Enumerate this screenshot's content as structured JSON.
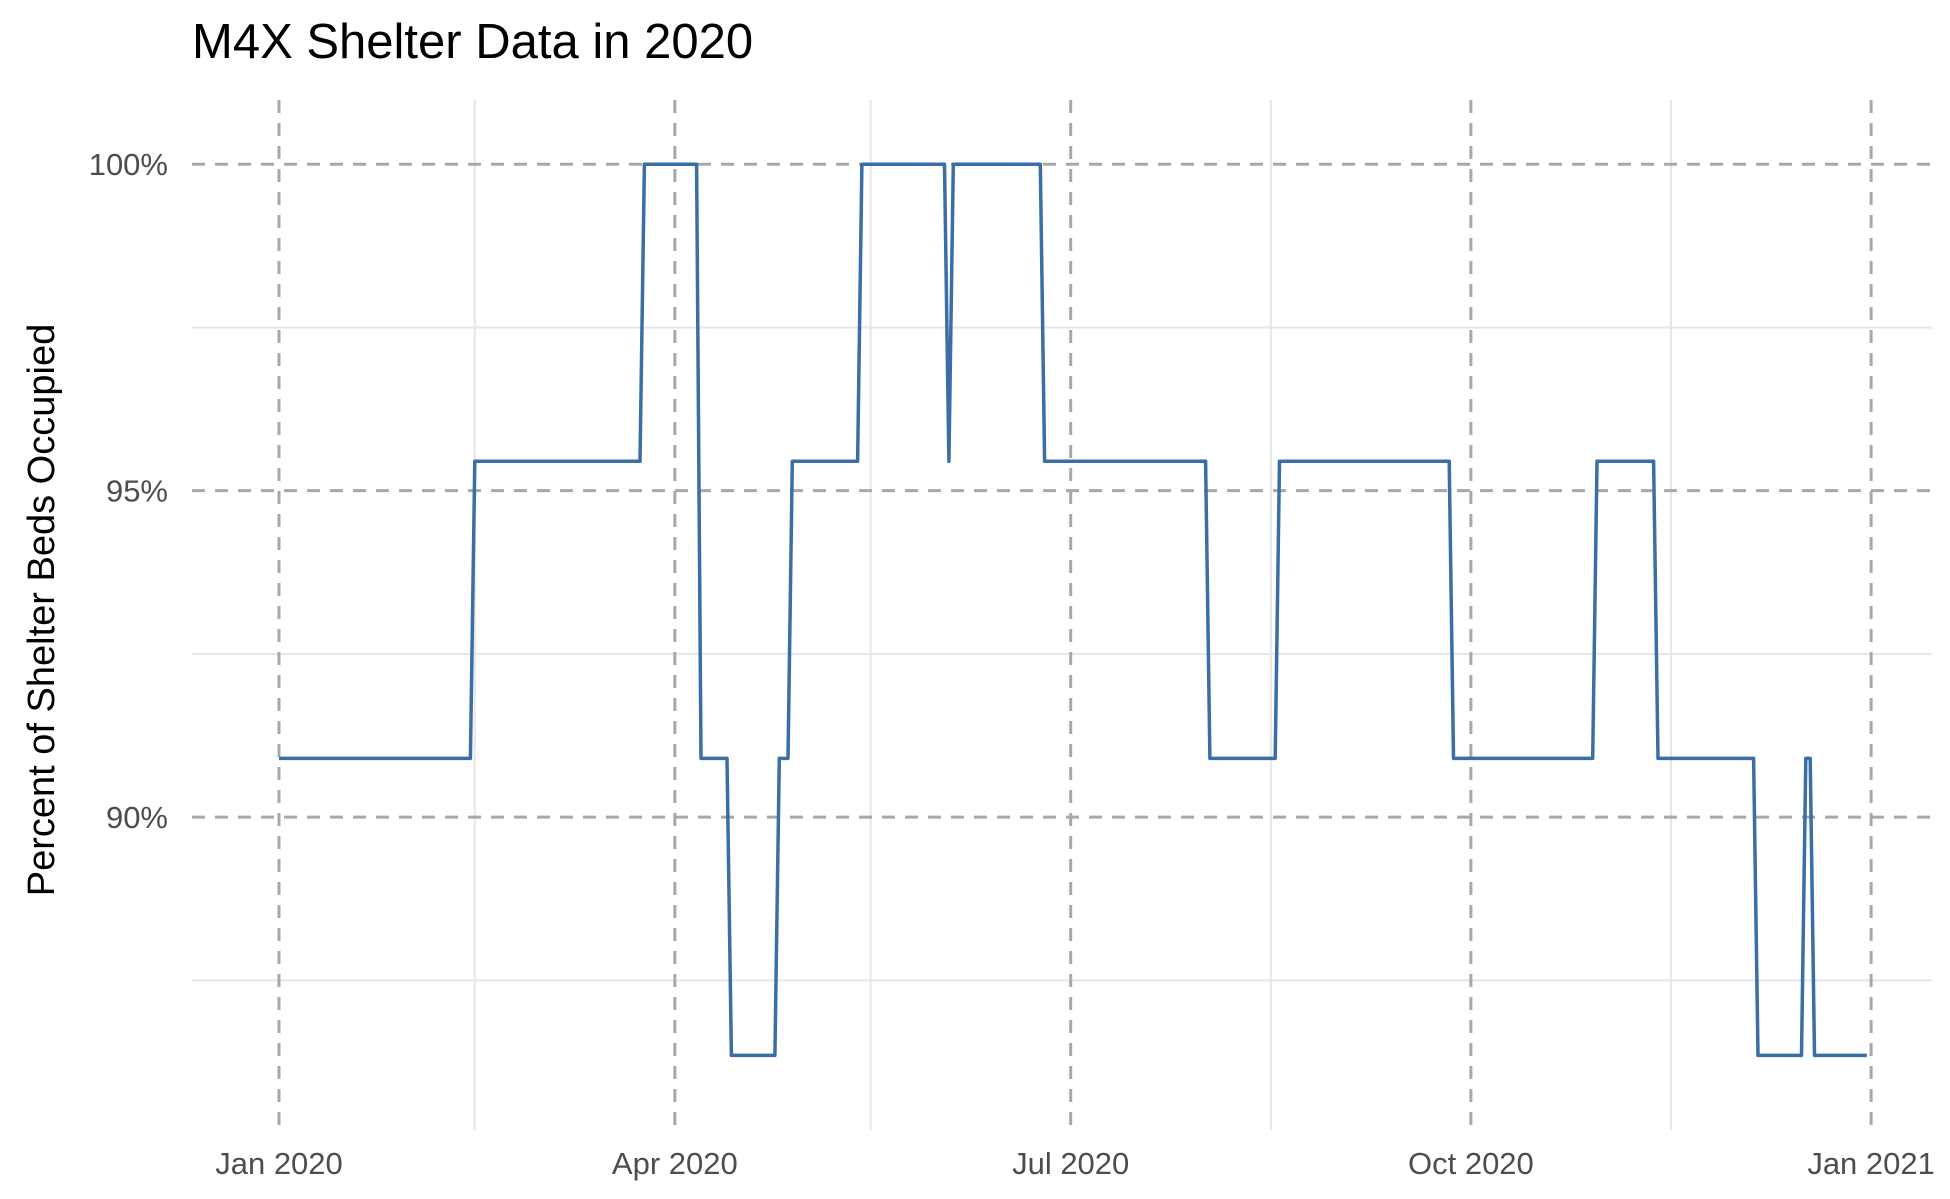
{
  "chart_data": {
    "type": "line",
    "title": "M4X Shelter Data in 2020",
    "xlabel": "",
    "ylabel": "Percent of Shelter Beds Occupied",
    "x_tick_labels": [
      {
        "date": "2020-01-01",
        "label": "Jan 2020"
      },
      {
        "date": "2020-04-01",
        "label": "Apr 2020"
      },
      {
        "date": "2020-07-01",
        "label": "Jul 2020"
      },
      {
        "date": "2020-10-01",
        "label": "Oct 2020"
      },
      {
        "date": "2021-01-01",
        "label": "Jan 2021"
      }
    ],
    "x_minor_ticks": [
      "2020-02-15",
      "2020-05-16",
      "2020-08-16",
      "2020-11-16"
    ],
    "y_tick_labels": [
      {
        "value": 90,
        "label": "90%"
      },
      {
        "value": 95,
        "label": "95%"
      },
      {
        "value": 100,
        "label": "100%"
      }
    ],
    "y_minor_ticks": [
      87.5,
      92.5,
      97.5
    ],
    "xlim": [
      "2019-12-12",
      "2021-01-15"
    ],
    "ylim": [
      85.3,
      100.8
    ],
    "grid": true,
    "legend": "none",
    "colors": {
      "line": "#3a6ea5",
      "major_grid": "#a8a8a8",
      "minor_grid": "#e6e6e6"
    },
    "series": [
      {
        "points": [
          [
            "2020-01-01",
            90.9
          ],
          [
            "2020-02-14",
            90.9
          ],
          [
            "2020-02-15",
            95.45
          ],
          [
            "2020-03-24",
            95.45
          ],
          [
            "2020-03-25",
            100
          ],
          [
            "2020-04-06",
            100
          ],
          [
            "2020-04-07",
            90.9
          ],
          [
            "2020-04-13",
            90.9
          ],
          [
            "2020-04-14",
            86.35
          ],
          [
            "2020-04-24",
            86.35
          ],
          [
            "2020-04-25",
            90.9
          ],
          [
            "2020-04-27",
            90.9
          ],
          [
            "2020-04-28",
            95.45
          ],
          [
            "2020-05-13",
            95.45
          ],
          [
            "2020-05-14",
            100
          ],
          [
            "2020-06-02",
            100
          ],
          [
            "2020-06-03",
            95.45
          ],
          [
            "2020-06-04",
            100
          ],
          [
            "2020-06-24",
            100
          ],
          [
            "2020-06-25",
            95.45
          ],
          [
            "2020-08-01",
            95.45
          ],
          [
            "2020-08-02",
            90.9
          ],
          [
            "2020-08-17",
            90.9
          ],
          [
            "2020-08-18",
            95.45
          ],
          [
            "2020-09-26",
            95.45
          ],
          [
            "2020-09-27",
            90.9
          ],
          [
            "2020-10-29",
            90.9
          ],
          [
            "2020-10-30",
            95.45
          ],
          [
            "2020-11-12",
            95.45
          ],
          [
            "2020-11-13",
            90.9
          ],
          [
            "2020-12-05",
            90.9
          ],
          [
            "2020-12-06",
            86.35
          ],
          [
            "2020-12-16",
            86.35
          ],
          [
            "2020-12-17",
            90.9
          ],
          [
            "2020-12-18",
            90.9
          ],
          [
            "2020-12-19",
            86.35
          ],
          [
            "2020-12-31",
            86.35
          ]
        ]
      }
    ]
  }
}
